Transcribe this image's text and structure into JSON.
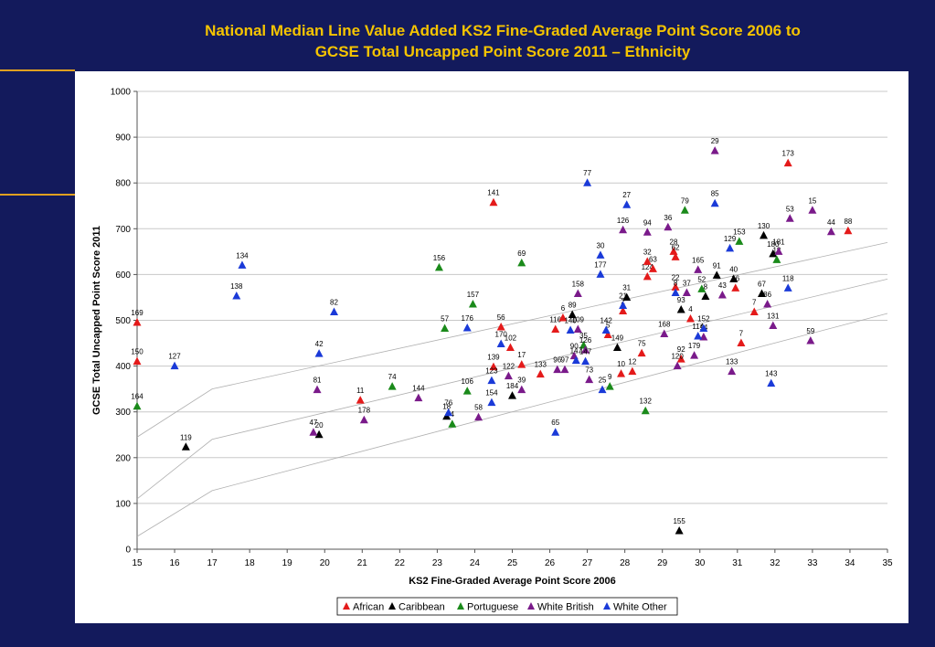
{
  "slide": {
    "title_line1": "National Median Line Value Added KS2 Fine-Graded Average Point Score 2006 to",
    "title_line2": "GCSE Total Uncapped Point Score 2011 – Ethnicity"
  },
  "colors": {
    "background": "#131a5c",
    "title": "#f5c400",
    "African": "#e41a1a",
    "Caribbean": "#000000",
    "Portuguese": "#1a8a1a",
    "White British": "#7a1a8a",
    "White Other": "#1a3ad8"
  },
  "chart_data": {
    "type": "scatter",
    "xlabel": "KS2 Fine-Graded Average Point Score 2006",
    "ylabel": "GCSE Total Uncapped Point Score 2011",
    "xlim": [
      15,
      35
    ],
    "ylim": [
      0,
      1000
    ],
    "xticks": [
      15,
      16,
      17,
      18,
      19,
      20,
      21,
      22,
      23,
      24,
      25,
      26,
      27,
      28,
      29,
      30,
      31,
      32,
      33,
      34,
      35
    ],
    "yticks": [
      0,
      100,
      200,
      300,
      400,
      500,
      600,
      700,
      800,
      900,
      1000
    ],
    "grid": "horizontal",
    "legend_position": "bottom",
    "marker": "triangle",
    "median_lines": [
      {
        "x": [
          15,
          17,
          35
        ],
        "y": [
          245,
          350,
          670
        ]
      },
      {
        "x": [
          15,
          17,
          35
        ],
        "y": [
          110,
          240,
          590
        ]
      },
      {
        "x": [
          15,
          17,
          35
        ],
        "y": [
          28,
          128,
          515
        ]
      }
    ],
    "series": [
      {
        "name": "African",
        "points": [
          {
            "x": 15.0,
            "y": 495,
            "label": "169"
          },
          {
            "x": 15.0,
            "y": 410,
            "label": "150"
          },
          {
            "x": 20.95,
            "y": 325,
            "label": "11"
          },
          {
            "x": 24.5,
            "y": 757,
            "label": "141"
          },
          {
            "x": 24.7,
            "y": 485,
            "label": "56"
          },
          {
            "x": 24.95,
            "y": 440,
            "label": "102"
          },
          {
            "x": 24.5,
            "y": 398,
            "label": "139"
          },
          {
            "x": 25.25,
            "y": 403,
            "label": "17"
          },
          {
            "x": 25.75,
            "y": 382,
            "label": "133"
          },
          {
            "x": 26.15,
            "y": 480,
            "label": "116"
          },
          {
            "x": 26.35,
            "y": 505,
            "label": "6"
          },
          {
            "x": 27.55,
            "y": 468,
            "label": "5"
          },
          {
            "x": 27.9,
            "y": 383,
            "label": "10"
          },
          {
            "x": 27.95,
            "y": 520,
            "label": "2"
          },
          {
            "x": 28.2,
            "y": 388,
            "label": "12"
          },
          {
            "x": 28.45,
            "y": 428,
            "label": "75"
          },
          {
            "x": 28.6,
            "y": 595,
            "label": "124"
          },
          {
            "x": 28.75,
            "y": 612,
            "label": "63"
          },
          {
            "x": 28.6,
            "y": 628,
            "label": "32"
          },
          {
            "x": 29.3,
            "y": 650,
            "label": "28"
          },
          {
            "x": 29.35,
            "y": 638,
            "label": "62"
          },
          {
            "x": 29.35,
            "y": 572,
            "label": "22"
          },
          {
            "x": 29.5,
            "y": 415,
            "label": "92"
          },
          {
            "x": 29.75,
            "y": 503,
            "label": "4"
          },
          {
            "x": 30.95,
            "y": 570,
            "label": "16"
          },
          {
            "x": 31.1,
            "y": 450,
            "label": "7"
          },
          {
            "x": 31.45,
            "y": 518,
            "label": "7"
          },
          {
            "x": 32.35,
            "y": 843,
            "label": "173"
          },
          {
            "x": 33.95,
            "y": 695,
            "label": "88"
          }
        ]
      },
      {
        "name": "Caribbean",
        "points": [
          {
            "x": 16.3,
            "y": 223,
            "label": "119"
          },
          {
            "x": 19.85,
            "y": 250,
            "label": "20"
          },
          {
            "x": 23.25,
            "y": 290,
            "label": "18"
          },
          {
            "x": 25.0,
            "y": 335,
            "label": "184"
          },
          {
            "x": 26.6,
            "y": 512,
            "label": "89"
          },
          {
            "x": 27.8,
            "y": 440,
            "label": "149"
          },
          {
            "x": 28.05,
            "y": 550,
            "label": "31"
          },
          {
            "x": 29.5,
            "y": 523,
            "label": "93"
          },
          {
            "x": 30.15,
            "y": 552,
            "label": "8"
          },
          {
            "x": 30.45,
            "y": 598,
            "label": "91"
          },
          {
            "x": 30.9,
            "y": 590,
            "label": "40"
          },
          {
            "x": 31.65,
            "y": 558,
            "label": "67"
          },
          {
            "x": 31.7,
            "y": 685,
            "label": "130"
          },
          {
            "x": 31.95,
            "y": 645,
            "label": "180"
          },
          {
            "x": 29.45,
            "y": 40,
            "label": "155"
          }
        ]
      },
      {
        "name": "Portuguese",
        "points": [
          {
            "x": 15.0,
            "y": 312,
            "label": "164"
          },
          {
            "x": 21.8,
            "y": 355,
            "label": "74"
          },
          {
            "x": 23.05,
            "y": 615,
            "label": "156"
          },
          {
            "x": 23.2,
            "y": 482,
            "label": "57"
          },
          {
            "x": 23.4,
            "y": 273,
            "label": "4"
          },
          {
            "x": 23.8,
            "y": 345,
            "label": "106"
          },
          {
            "x": 23.95,
            "y": 535,
            "label": "157"
          },
          {
            "x": 25.25,
            "y": 625,
            "label": "69"
          },
          {
            "x": 26.9,
            "y": 445,
            "label": "35"
          },
          {
            "x": 27.6,
            "y": 355,
            "label": "9"
          },
          {
            "x": 28.55,
            "y": 302,
            "label": "132"
          },
          {
            "x": 29.6,
            "y": 740,
            "label": "79"
          },
          {
            "x": 30.05,
            "y": 568,
            "label": "52"
          },
          {
            "x": 31.05,
            "y": 672,
            "label": "153"
          },
          {
            "x": 32.05,
            "y": 632,
            "label": "18"
          }
        ]
      },
      {
        "name": "White British",
        "points": [
          {
            "x": 19.7,
            "y": 255,
            "label": "47"
          },
          {
            "x": 19.8,
            "y": 348,
            "label": "81"
          },
          {
            "x": 21.05,
            "y": 282,
            "label": "178"
          },
          {
            "x": 22.5,
            "y": 330,
            "label": "144"
          },
          {
            "x": 24.1,
            "y": 288,
            "label": "58"
          },
          {
            "x": 24.9,
            "y": 378,
            "label": "122"
          },
          {
            "x": 25.25,
            "y": 348,
            "label": "39"
          },
          {
            "x": 26.2,
            "y": 392,
            "label": "96"
          },
          {
            "x": 26.4,
            "y": 392,
            "label": "97"
          },
          {
            "x": 26.65,
            "y": 422,
            "label": "90"
          },
          {
            "x": 26.75,
            "y": 480,
            "label": "109"
          },
          {
            "x": 26.75,
            "y": 558,
            "label": "158"
          },
          {
            "x": 26.95,
            "y": 435,
            "label": "126"
          },
          {
            "x": 27.05,
            "y": 370,
            "label": "73"
          },
          {
            "x": 27.95,
            "y": 697,
            "label": "126"
          },
          {
            "x": 28.6,
            "y": 692,
            "label": "94"
          },
          {
            "x": 29.05,
            "y": 470,
            "label": "168"
          },
          {
            "x": 29.15,
            "y": 703,
            "label": "36"
          },
          {
            "x": 29.4,
            "y": 400,
            "label": "120"
          },
          {
            "x": 29.65,
            "y": 560,
            "label": "37"
          },
          {
            "x": 29.85,
            "y": 423,
            "label": "179"
          },
          {
            "x": 29.95,
            "y": 610,
            "label": "165"
          },
          {
            "x": 30.1,
            "y": 463,
            "label": "14"
          },
          {
            "x": 30.4,
            "y": 870,
            "label": "29"
          },
          {
            "x": 30.6,
            "y": 555,
            "label": "43"
          },
          {
            "x": 30.85,
            "y": 388,
            "label": "133"
          },
          {
            "x": 31.8,
            "y": 535,
            "label": "86"
          },
          {
            "x": 31.95,
            "y": 488,
            "label": "131"
          },
          {
            "x": 32.1,
            "y": 650,
            "label": "181"
          },
          {
            "x": 32.4,
            "y": 722,
            "label": "53"
          },
          {
            "x": 32.95,
            "y": 455,
            "label": "59"
          },
          {
            "x": 33.0,
            "y": 740,
            "label": "15"
          },
          {
            "x": 33.5,
            "y": 693,
            "label": "44"
          }
        ]
      },
      {
        "name": "White Other",
        "points": [
          {
            "x": 16.0,
            "y": 400,
            "label": "127"
          },
          {
            "x": 17.65,
            "y": 553,
            "label": "138"
          },
          {
            "x": 17.8,
            "y": 620,
            "label": "134"
          },
          {
            "x": 19.85,
            "y": 427,
            "label": "42"
          },
          {
            "x": 20.25,
            "y": 518,
            "label": "82"
          },
          {
            "x": 23.3,
            "y": 298,
            "label": "76"
          },
          {
            "x": 23.8,
            "y": 483,
            "label": "176"
          },
          {
            "x": 24.45,
            "y": 320,
            "label": "154"
          },
          {
            "x": 24.45,
            "y": 368,
            "label": "123"
          },
          {
            "x": 24.7,
            "y": 448,
            "label": "170"
          },
          {
            "x": 26.15,
            "y": 255,
            "label": "65"
          },
          {
            "x": 26.55,
            "y": 478,
            "label": "140"
          },
          {
            "x": 26.7,
            "y": 412,
            "label": "147"
          },
          {
            "x": 26.95,
            "y": 410,
            "label": "147"
          },
          {
            "x": 27.0,
            "y": 800,
            "label": "77"
          },
          {
            "x": 27.35,
            "y": 642,
            "label": "30"
          },
          {
            "x": 27.35,
            "y": 600,
            "label": "177"
          },
          {
            "x": 27.4,
            "y": 348,
            "label": "25"
          },
          {
            "x": 27.5,
            "y": 478,
            "label": "142"
          },
          {
            "x": 27.95,
            "y": 532,
            "label": "21"
          },
          {
            "x": 28.05,
            "y": 752,
            "label": "27"
          },
          {
            "x": 29.35,
            "y": 560,
            "label": "8"
          },
          {
            "x": 29.95,
            "y": 465,
            "label": "114"
          },
          {
            "x": 30.1,
            "y": 482,
            "label": "152"
          },
          {
            "x": 30.4,
            "y": 755,
            "label": "85"
          },
          {
            "x": 30.8,
            "y": 657,
            "label": "129"
          },
          {
            "x": 31.9,
            "y": 362,
            "label": "143"
          },
          {
            "x": 32.35,
            "y": 570,
            "label": "118"
          }
        ]
      }
    ]
  }
}
